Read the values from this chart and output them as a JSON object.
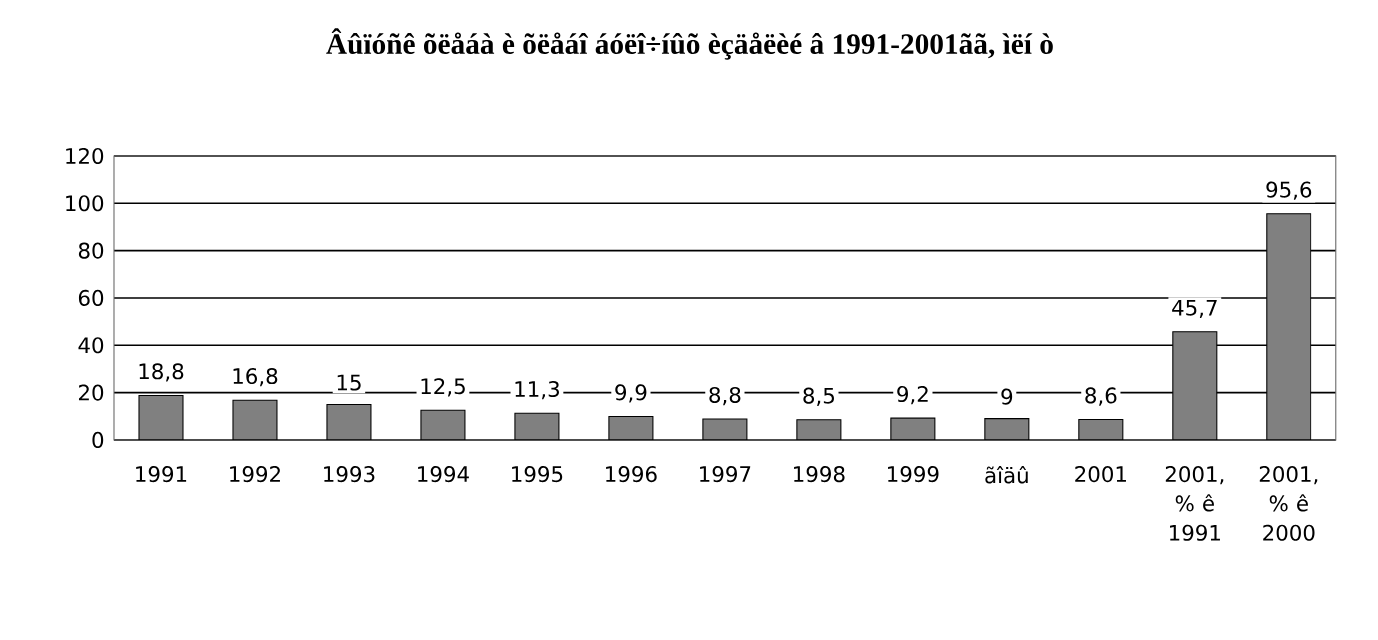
{
  "chart_data": {
    "type": "bar",
    "title": "Âûïóñê õëåáà è õëåáî áóëî÷íûõ èçäåëèé â 1991-2001ãã, ìëí ò",
    "categories": [
      "1991",
      "1992",
      "1993",
      "1994",
      "1995",
      "1996",
      "1997",
      "1998",
      "1999",
      "ãîäû",
      "2001",
      "2001, % ê 1991",
      "2001, % ê 2000"
    ],
    "values": [
      18.8,
      16.8,
      15,
      12.5,
      11.3,
      9.9,
      8.8,
      8.5,
      9.2,
      9,
      8.6,
      45.7,
      95.6
    ],
    "value_labels": [
      "18,8",
      "16,8",
      "15",
      "12,5",
      "11,3",
      "9,9",
      "8,8",
      "8,5",
      "9,2",
      "9",
      "8,6",
      "45,7",
      "95,6"
    ],
    "color": "#808080",
    "ylim": [
      0,
      120
    ],
    "yticks": [
      0,
      20,
      40,
      60,
      80,
      100,
      120
    ],
    "grid": "y"
  }
}
